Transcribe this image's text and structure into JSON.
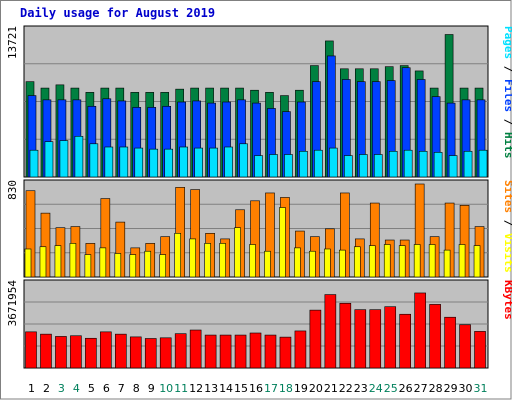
{
  "title": "Daily usage for August 2019",
  "colors": {
    "background": "#c0c0c0",
    "pages": "#00e0ff",
    "files": "#0040ff",
    "hits": "#008040",
    "visits": "#ffff00",
    "sites": "#ff8000",
    "kbytes": "#ff0000",
    "weekday_label": "#000000",
    "weekend_label": "#00805c"
  },
  "chart_data": [
    {
      "type": "bar",
      "title": "Daily usage for August 2019",
      "categories": [
        "1",
        "2",
        "3",
        "4",
        "5",
        "6",
        "7",
        "8",
        "9",
        "10",
        "11",
        "12",
        "13",
        "14",
        "15",
        "16",
        "17",
        "18",
        "19",
        "20",
        "21",
        "22",
        "23",
        "24",
        "25",
        "26",
        "27",
        "28",
        "29",
        "30",
        "31"
      ],
      "weekend_days": [
        "3",
        "4",
        "10",
        "11",
        "17",
        "18",
        "24",
        "25",
        "31"
      ],
      "ylabel": "Pages / Files / Hits",
      "ylabel_parts": [
        "Pages",
        "/",
        "Files",
        "/",
        "Hits"
      ],
      "ymax_label": "13721",
      "ylim": [
        0,
        13721
      ],
      "grid": true,
      "series": [
        {
          "name": "Hits",
          "values": [
            8900,
            8300,
            8600,
            8300,
            7900,
            8300,
            8300,
            7900,
            7900,
            7900,
            8200,
            8300,
            8300,
            8300,
            8300,
            8100,
            7900,
            7600,
            8100,
            10400,
            12700,
            10100,
            10100,
            10100,
            10300,
            10400,
            9900,
            8300,
            13300,
            8300,
            8300
          ]
        },
        {
          "name": "Files",
          "values": [
            7600,
            7200,
            7200,
            7200,
            6600,
            7300,
            7100,
            6500,
            6500,
            6600,
            7000,
            7100,
            6900,
            7000,
            7200,
            6900,
            6400,
            6100,
            7000,
            8900,
            11300,
            9100,
            8900,
            8900,
            9000,
            10200,
            9100,
            7500,
            6900,
            7200,
            7200
          ]
        },
        {
          "name": "Pages",
          "values": [
            2500,
            3300,
            3400,
            3800,
            3100,
            2800,
            2800,
            2700,
            2600,
            2600,
            2800,
            2700,
            2700,
            2800,
            3100,
            2000,
            2100,
            2100,
            2400,
            2500,
            2700,
            2000,
            2100,
            2100,
            2400,
            2500,
            2400,
            2300,
            2000,
            2400,
            2500
          ]
        }
      ]
    },
    {
      "type": "bar",
      "categories": [
        "1",
        "2",
        "3",
        "4",
        "5",
        "6",
        "7",
        "8",
        "9",
        "10",
        "11",
        "12",
        "13",
        "14",
        "15",
        "16",
        "17",
        "18",
        "19",
        "20",
        "21",
        "22",
        "23",
        "24",
        "25",
        "26",
        "27",
        "28",
        "29",
        "30",
        "31"
      ],
      "ylabel": "Sites / Visits",
      "ylabel_parts": [
        "Sites",
        "/",
        "Visits"
      ],
      "ymax_label": "830",
      "ylim": [
        0,
        830
      ],
      "grid": true,
      "series": [
        {
          "name": "Sites",
          "values": [
            770,
            570,
            440,
            450,
            300,
            700,
            490,
            260,
            300,
            360,
            800,
            780,
            390,
            340,
            600,
            680,
            750,
            710,
            410,
            360,
            430,
            750,
            340,
            660,
            330,
            330,
            830,
            360,
            660,
            640,
            450
          ]
        },
        {
          "name": "Visits",
          "values": [
            250,
            270,
            280,
            300,
            200,
            260,
            210,
            200,
            230,
            200,
            390,
            340,
            300,
            300,
            440,
            290,
            230,
            620,
            260,
            230,
            250,
            240,
            270,
            280,
            290,
            280,
            290,
            290,
            240,
            290,
            280
          ]
        }
      ]
    },
    {
      "type": "bar",
      "categories": [
        "1",
        "2",
        "3",
        "4",
        "5",
        "6",
        "7",
        "8",
        "9",
        "10",
        "11",
        "12",
        "13",
        "14",
        "15",
        "16",
        "17",
        "18",
        "19",
        "20",
        "21",
        "22",
        "23",
        "24",
        "25",
        "26",
        "27",
        "28",
        "29",
        "30",
        "31"
      ],
      "ylabel": "KBytes",
      "ymax_label": "3671954",
      "ylim": [
        0,
        3671954
      ],
      "grid": true,
      "series": [
        {
          "name": "KBytes",
          "values": [
            1580000,
            1480000,
            1380000,
            1410000,
            1300000,
            1580000,
            1480000,
            1360000,
            1290000,
            1320000,
            1500000,
            1660000,
            1440000,
            1440000,
            1440000,
            1530000,
            1440000,
            1350000,
            1620000,
            2530000,
            3210000,
            2830000,
            2550000,
            2550000,
            2680000,
            2350000,
            3280000,
            2780000,
            2220000,
            1890000,
            1600000
          ]
        }
      ]
    }
  ]
}
